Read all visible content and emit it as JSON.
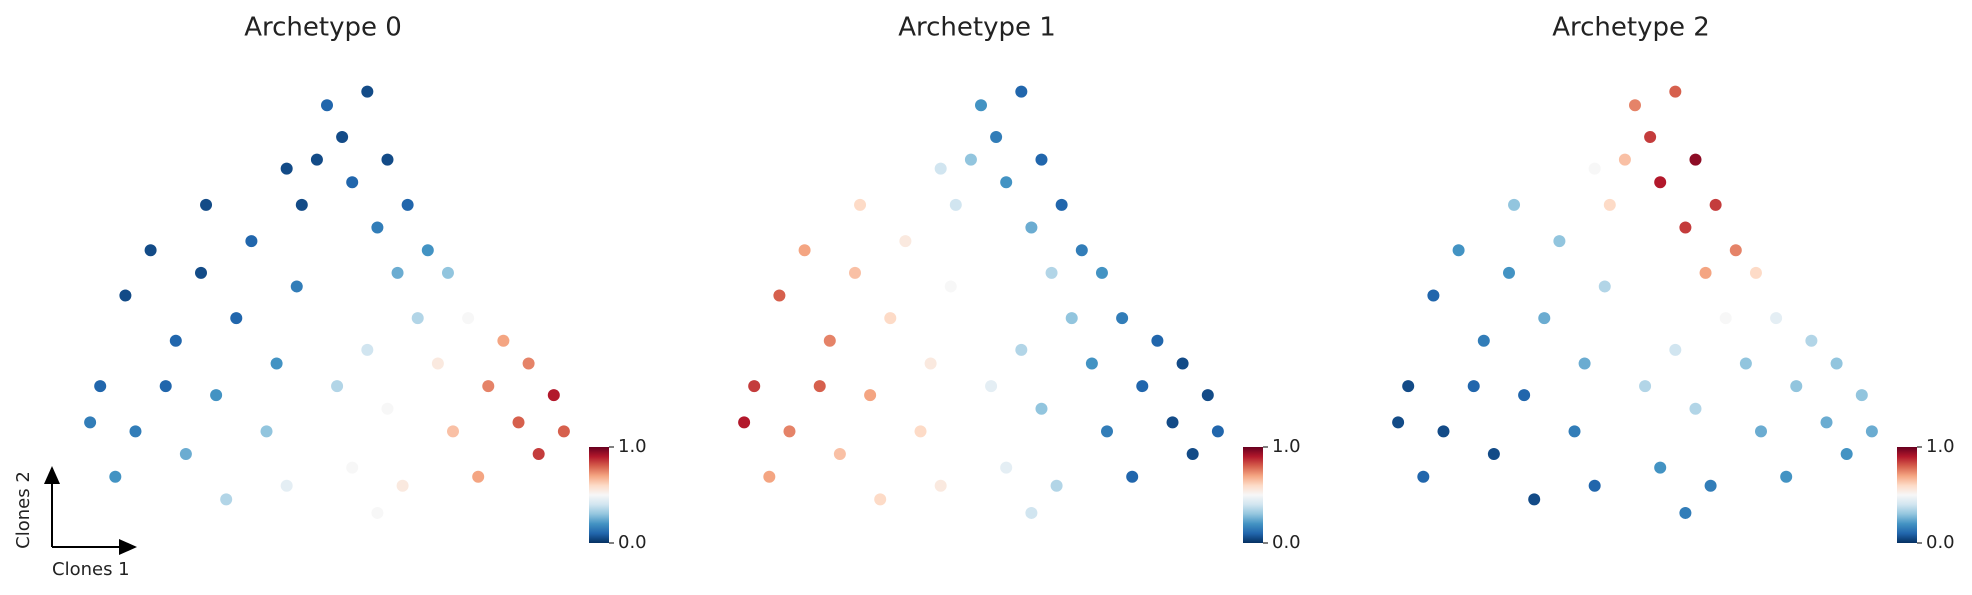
{
  "chart_data": [
    {
      "type": "scatter",
      "title": "Archetype 0",
      "x_label": "Clones 1",
      "y_label": "Clones 2",
      "cmap": "RdBu_r",
      "clim": [
        0,
        1
      ],
      "cticks": [
        {
          "value": 0,
          "label": "0.0"
        },
        {
          "value": 1,
          "label": "1.0"
        }
      ],
      "xlim": [
        0,
        100
      ],
      "ylim": [
        0,
        100
      ],
      "x": [
        5,
        10,
        12,
        8,
        15,
        20,
        22,
        25,
        28,
        30,
        32,
        35,
        38,
        40,
        42,
        44,
        45,
        48,
        50,
        53,
        55,
        58,
        60,
        62,
        64,
        66,
        68,
        70,
        52,
        55,
        58,
        62,
        65,
        72,
        75,
        78,
        80,
        82,
        85,
        88,
        90,
        92,
        95,
        97,
        18,
        3,
        26,
        42,
        74,
        60
      ],
      "y": [
        30,
        50,
        20,
        10,
        60,
        40,
        15,
        55,
        28,
        5,
        45,
        62,
        20,
        35,
        8,
        52,
        70,
        80,
        92,
        85,
        75,
        95,
        65,
        80,
        55,
        70,
        45,
        60,
        30,
        12,
        38,
        25,
        8,
        35,
        20,
        45,
        10,
        30,
        40,
        22,
        35,
        15,
        28,
        20,
        30,
        22,
        70,
        78,
        55,
        2
      ],
      "values": [
        0.1,
        0.05,
        0.15,
        0.2,
        0.05,
        0.1,
        0.25,
        0.05,
        0.2,
        0.35,
        0.1,
        0.1,
        0.3,
        0.2,
        0.45,
        0.15,
        0.05,
        0.05,
        0.1,
        0.05,
        0.1,
        0.05,
        0.15,
        0.05,
        0.25,
        0.1,
        0.35,
        0.2,
        0.35,
        0.5,
        0.4,
        0.5,
        0.55,
        0.55,
        0.65,
        0.5,
        0.7,
        0.75,
        0.7,
        0.8,
        0.75,
        0.85,
        0.9,
        0.8,
        0.1,
        0.15,
        0.05,
        0.05,
        0.3,
        0.5
      ]
    },
    {
      "type": "scatter",
      "title": "Archetype 1",
      "cmap": "RdBu_r",
      "clim": [
        0,
        1
      ],
      "cticks": [
        {
          "value": 0,
          "label": "0.0"
        },
        {
          "value": 1,
          "label": "1.0"
        }
      ],
      "xlim": [
        0,
        100
      ],
      "ylim": [
        0,
        100
      ],
      "x": [
        5,
        10,
        12,
        8,
        15,
        20,
        22,
        25,
        28,
        30,
        32,
        35,
        38,
        40,
        42,
        44,
        45,
        48,
        50,
        53,
        55,
        58,
        60,
        62,
        64,
        66,
        68,
        70,
        52,
        55,
        58,
        62,
        65,
        72,
        75,
        78,
        80,
        82,
        85,
        88,
        90,
        92,
        95,
        97,
        18,
        3,
        26,
        42,
        74,
        60
      ],
      "y": [
        30,
        50,
        20,
        10,
        60,
        40,
        15,
        55,
        28,
        5,
        45,
        62,
        20,
        35,
        8,
        52,
        70,
        80,
        92,
        85,
        75,
        95,
        65,
        80,
        55,
        70,
        45,
        60,
        30,
        12,
        38,
        25,
        8,
        35,
        20,
        45,
        10,
        30,
        40,
        22,
        35,
        15,
        28,
        20,
        30,
        22,
        70,
        78,
        55,
        2
      ],
      "values": [
        0.85,
        0.8,
        0.75,
        0.7,
        0.7,
        0.75,
        0.65,
        0.65,
        0.7,
        0.6,
        0.6,
        0.55,
        0.6,
        0.55,
        0.55,
        0.5,
        0.4,
        0.3,
        0.2,
        0.15,
        0.2,
        0.1,
        0.25,
        0.1,
        0.35,
        0.1,
        0.3,
        0.15,
        0.45,
        0.45,
        0.35,
        0.3,
        0.35,
        0.2,
        0.15,
        0.15,
        0.1,
        0.1,
        0.1,
        0.05,
        0.05,
        0.05,
        0.05,
        0.1,
        0.8,
        0.9,
        0.6,
        0.4,
        0.2,
        0.4
      ]
    },
    {
      "type": "scatter",
      "title": "Archetype 2",
      "cmap": "RdBu_r",
      "clim": [
        0,
        1
      ],
      "cticks": [
        {
          "value": 0,
          "label": "0.0"
        },
        {
          "value": 1,
          "label": "1.0"
        }
      ],
      "xlim": [
        0,
        100
      ],
      "ylim": [
        0,
        100
      ],
      "x": [
        5,
        10,
        12,
        8,
        15,
        20,
        22,
        25,
        28,
        30,
        32,
        35,
        38,
        40,
        42,
        44,
        45,
        48,
        50,
        53,
        55,
        58,
        60,
        62,
        64,
        66,
        68,
        70,
        52,
        55,
        58,
        62,
        65,
        72,
        75,
        78,
        80,
        82,
        85,
        88,
        90,
        92,
        95,
        97,
        18,
        3,
        26,
        42,
        74,
        60
      ],
      "y": [
        30,
        50,
        20,
        10,
        60,
        40,
        15,
        55,
        28,
        5,
        45,
        62,
        20,
        35,
        8,
        52,
        70,
        80,
        92,
        85,
        75,
        95,
        65,
        80,
        55,
        70,
        45,
        60,
        30,
        12,
        38,
        25,
        8,
        35,
        20,
        45,
        10,
        30,
        40,
        22,
        35,
        15,
        28,
        20,
        30,
        22,
        70,
        78,
        55,
        2
      ],
      "values": [
        0.05,
        0.1,
        0.05,
        0.1,
        0.2,
        0.15,
        0.05,
        0.2,
        0.1,
        0.05,
        0.25,
        0.3,
        0.15,
        0.25,
        0.1,
        0.35,
        0.6,
        0.65,
        0.75,
        0.85,
        0.9,
        0.8,
        0.85,
        0.95,
        0.7,
        0.85,
        0.5,
        0.75,
        0.35,
        0.2,
        0.4,
        0.35,
        0.15,
        0.3,
        0.25,
        0.45,
        0.2,
        0.3,
        0.35,
        0.25,
        0.3,
        0.2,
        0.3,
        0.25,
        0.1,
        0.05,
        0.3,
        0.5,
        0.6,
        0.15
      ]
    }
  ]
}
